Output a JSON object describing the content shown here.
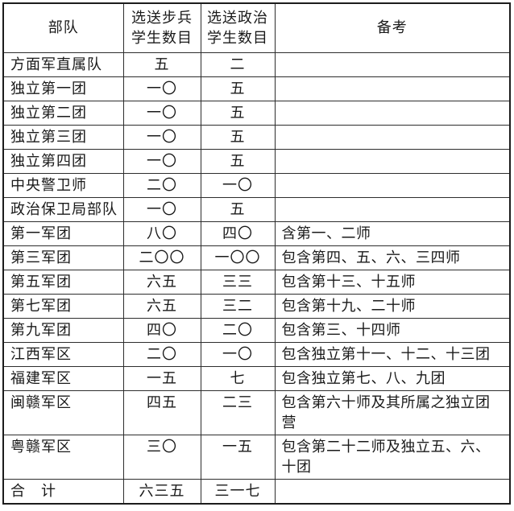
{
  "colors": {
    "background": "#ffffff",
    "border_outer": "#1c1c1c",
    "border_inner": "#2d2d2d",
    "ink": "#1a1a1a"
  },
  "table": {
    "headers": [
      "部队",
      "选送步兵\n学生数目",
      "选送政治\n学生数目",
      "备考"
    ],
    "rows": [
      {
        "unit": "方面军直属队",
        "infantry": "五",
        "political": "二",
        "remark": ""
      },
      {
        "unit": "独立第一团",
        "infantry": "一〇",
        "political": "五",
        "remark": ""
      },
      {
        "unit": "独立第二团",
        "infantry": "一〇",
        "political": "五",
        "remark": ""
      },
      {
        "unit": "独立第三团",
        "infantry": "一〇",
        "political": "五",
        "remark": ""
      },
      {
        "unit": "独立第四团",
        "infantry": "一〇",
        "political": "五",
        "remark": ""
      },
      {
        "unit": "中央警卫师",
        "infantry": "二〇",
        "political": "一〇",
        "remark": ""
      },
      {
        "unit": "政治保卫局部队",
        "infantry": "一〇",
        "political": "五",
        "remark": ""
      },
      {
        "unit": "第一军团",
        "infantry": "八〇",
        "political": "四〇",
        "remark": "含第一、二师"
      },
      {
        "unit": "第三军团",
        "infantry": "二〇〇",
        "political": "一〇〇",
        "remark": "包含第四、五、六、三四师"
      },
      {
        "unit": "第五军团",
        "infantry": "六五",
        "political": "三三",
        "remark": "包含第十三、十五师"
      },
      {
        "unit": "第七军团",
        "infantry": "六五",
        "political": "三二",
        "remark": "包含第十九、二十师"
      },
      {
        "unit": "第九军团",
        "infantry": "四〇",
        "political": "二〇",
        "remark": "包含第三、十四师"
      },
      {
        "unit": "江西军区",
        "infantry": "二〇",
        "political": "一〇",
        "remark": "包含独立第十一、十二、十三团"
      },
      {
        "unit": "福建军区",
        "infantry": "一五",
        "political": "七",
        "remark": "包含独立第七、八、九团"
      },
      {
        "unit": "闽赣军区",
        "infantry": "四五",
        "political": "二三",
        "remark": "包含第六十师及其所属之独立团营"
      },
      {
        "unit": "粤赣军区",
        "infantry": "三〇",
        "political": "一五",
        "remark": "包含第二十二师及独立五、六、十团"
      },
      {
        "unit": "合　计",
        "infantry": "六三五",
        "political": "三一七",
        "remark": ""
      }
    ]
  }
}
